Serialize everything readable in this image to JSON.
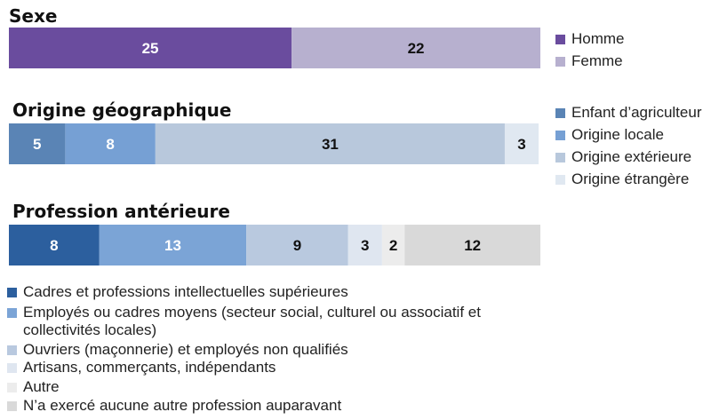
{
  "chart_data": [
    {
      "type": "bar",
      "stacked": true,
      "orientation": "horizontal",
      "title": "Sexe",
      "legend_position": "right",
      "series": [
        {
          "name": "Homme",
          "value": 25,
          "color": "#6a4c9e",
          "label_color": "#ffffff"
        },
        {
          "name": "Femme",
          "value": 22,
          "color": "#b7b0cf",
          "label_color": "#111111"
        }
      ]
    },
    {
      "type": "bar",
      "stacked": true,
      "orientation": "horizontal",
      "title": "Origine géographique",
      "legend_position": "right",
      "series": [
        {
          "name": "Enfant d’agriculteur",
          "value": 5,
          "color": "#5a84b5",
          "label_color": "#ffffff"
        },
        {
          "name": "Origine locale",
          "value": 8,
          "color": "#76a0d4",
          "label_color": "#ffffff"
        },
        {
          "name": "Origine extérieure",
          "value": 31,
          "color": "#b8c8dc",
          "label_color": "#111111"
        },
        {
          "name": "Origine étrangère",
          "value": 3,
          "color": "#e0e8f1",
          "label_color": "#111111"
        }
      ]
    },
    {
      "type": "bar",
      "stacked": true,
      "orientation": "horizontal",
      "title": "Profession antérieure",
      "legend_position": "bottom",
      "series": [
        {
          "name": "Cadres et professions intellectuelles supérieures",
          "value": 8,
          "color": "#2c5f9e",
          "label_color": "#ffffff"
        },
        {
          "name": "Employés ou cadres moyens (secteur social, culturel ou associatif et collectivités locales)",
          "value": 13,
          "color": "#7ba4d6",
          "label_color": "#ffffff"
        },
        {
          "name": "Ouvriers (maçonnerie) et employés non qualifiés",
          "value": 9,
          "color": "#b9c9df",
          "label_color": "#111111"
        },
        {
          "name": "Artisans, commerçants, indépendants",
          "value": 3,
          "color": "#dfe6f0",
          "label_color": "#111111"
        },
        {
          "name": "Autre",
          "value": 2,
          "color": "#ececec",
          "label_color": "#111111"
        },
        {
          "name": "N’a exercé aucune autre profession auparavant",
          "value": 12,
          "color": "#d9d9d9",
          "label_color": "#111111"
        }
      ]
    }
  ]
}
